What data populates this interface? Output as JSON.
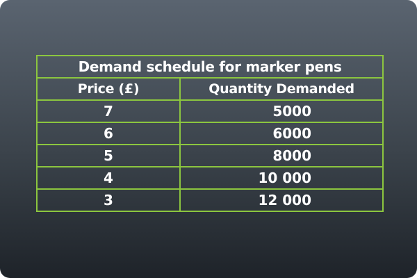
{
  "table": {
    "title": "Demand schedule for marker pens",
    "headers": [
      "Price (£)",
      "Quantity Demanded"
    ],
    "rows": [
      {
        "price": "7",
        "quantity": "5000"
      },
      {
        "price": "6",
        "quantity": "6000"
      },
      {
        "price": "5",
        "quantity": "8000"
      },
      {
        "price": "4",
        "quantity": "10 000"
      },
      {
        "price": "3",
        "quantity": "12 000"
      }
    ]
  },
  "colors": {
    "border": "#8cc63f",
    "text": "#ffffff",
    "background_top": "#5a6470",
    "background_bottom": "#1e2329"
  }
}
